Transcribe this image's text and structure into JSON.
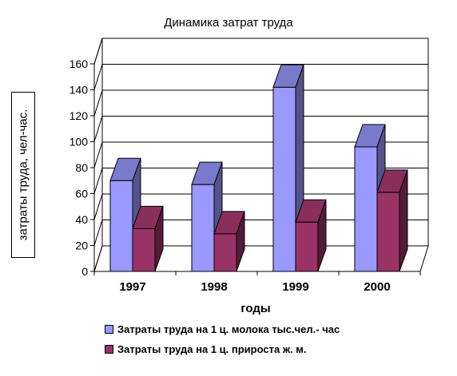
{
  "chart_data": {
    "type": "bar",
    "title": "Динамика затрат труда",
    "xlabel": "годы",
    "ylabel": "затраты труда, чел-час.",
    "categories": [
      "1997",
      "1998",
      "1999",
      "2000"
    ],
    "series": [
      {
        "name": "Затраты труда на 1 ц. молока тыс.чел.- час",
        "values": [
          70,
          67,
          142,
          96
        ],
        "color": "#9999ff"
      },
      {
        "name": "Затраты труда на 1 ц. прироста ж. м.",
        "values": [
          33,
          29,
          38,
          61
        ],
        "color": "#993366"
      }
    ],
    "ylim": [
      0,
      160
    ],
    "yticks": [
      0,
      20,
      40,
      60,
      80,
      100,
      120,
      140,
      160
    ],
    "grid": true,
    "legend_position": "bottom"
  }
}
